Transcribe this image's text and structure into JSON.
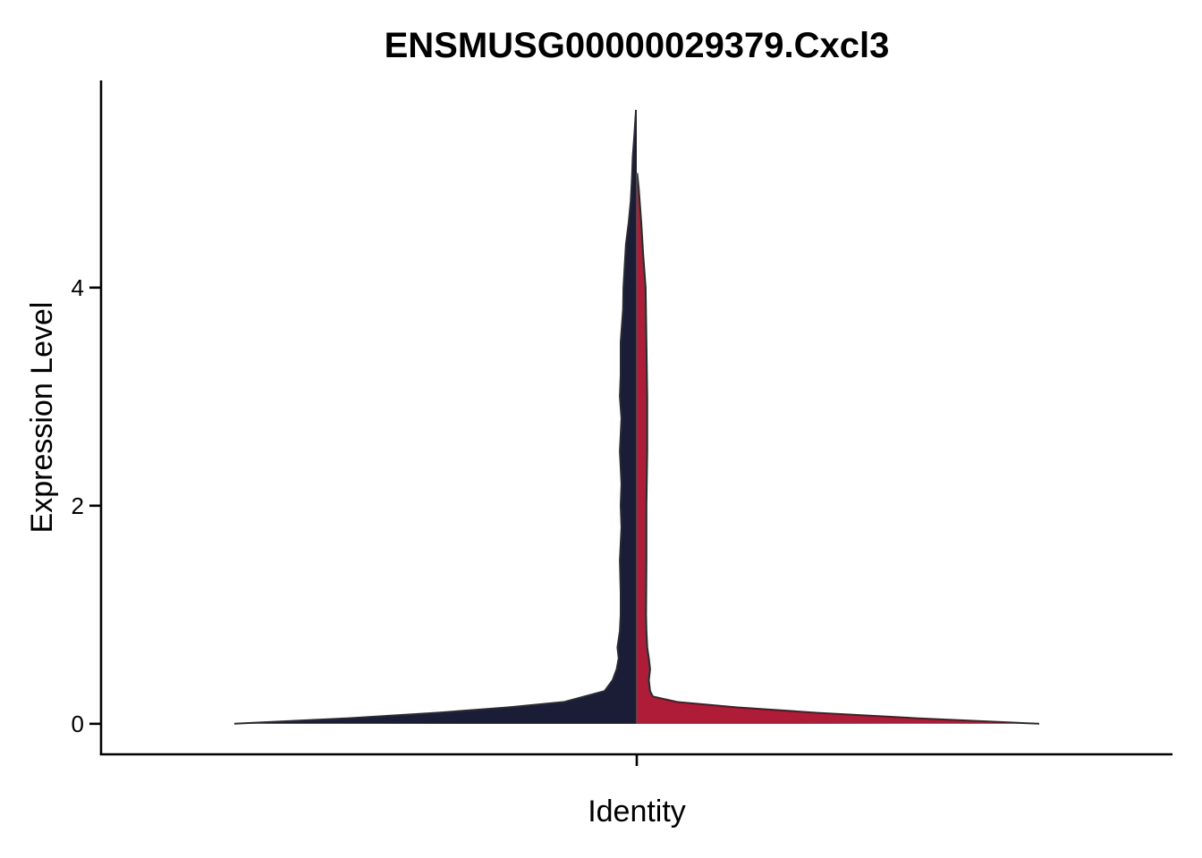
{
  "chart_data": {
    "type": "violin",
    "title": "ENSMUSG00000029379.Cxcl3",
    "xlabel": "Identity",
    "ylabel": "Expression Level",
    "ylim": [
      -0.28,
      5.9
    ],
    "yticks": [
      0,
      2,
      4
    ],
    "grid": false,
    "legend": "none",
    "split": true,
    "max_value": 5.63,
    "series": [
      {
        "color": "#1b1d36",
        "side": "left",
        "profile": [
          [
            0.0,
            1.0
          ],
          [
            0.05,
            0.72
          ],
          [
            0.1,
            0.5
          ],
          [
            0.15,
            0.32
          ],
          [
            0.2,
            0.18
          ],
          [
            0.3,
            0.08
          ],
          [
            0.4,
            0.06
          ],
          [
            0.5,
            0.05
          ],
          [
            0.6,
            0.045
          ],
          [
            0.7,
            0.048
          ],
          [
            0.85,
            0.042
          ],
          [
            1.0,
            0.04
          ],
          [
            1.2,
            0.04
          ],
          [
            1.5,
            0.042
          ],
          [
            1.8,
            0.038
          ],
          [
            2.0,
            0.04
          ],
          [
            2.2,
            0.038
          ],
          [
            2.5,
            0.042
          ],
          [
            2.8,
            0.038
          ],
          [
            3.0,
            0.042
          ],
          [
            3.2,
            0.04
          ],
          [
            3.5,
            0.04
          ],
          [
            3.8,
            0.034
          ],
          [
            4.0,
            0.033
          ],
          [
            4.2,
            0.03
          ],
          [
            4.4,
            0.027
          ],
          [
            4.6,
            0.02
          ],
          [
            4.8,
            0.015
          ],
          [
            5.0,
            0.012
          ],
          [
            5.2,
            0.01
          ],
          [
            5.4,
            0.006
          ],
          [
            5.63,
            0.002
          ]
        ]
      },
      {
        "color": "#ae1c37",
        "side": "right",
        "profile": [
          [
            0.0,
            1.0
          ],
          [
            0.05,
            0.7
          ],
          [
            0.1,
            0.45
          ],
          [
            0.15,
            0.25
          ],
          [
            0.2,
            0.1
          ],
          [
            0.25,
            0.04
          ],
          [
            0.3,
            0.033
          ],
          [
            0.4,
            0.03
          ],
          [
            0.5,
            0.033
          ],
          [
            0.6,
            0.03
          ],
          [
            0.7,
            0.026
          ],
          [
            0.85,
            0.024
          ],
          [
            1.0,
            0.023
          ],
          [
            1.5,
            0.024
          ],
          [
            2.0,
            0.024
          ],
          [
            2.5,
            0.026
          ],
          [
            3.0,
            0.026
          ],
          [
            3.5,
            0.024
          ],
          [
            4.0,
            0.022
          ],
          [
            4.3,
            0.016
          ],
          [
            4.6,
            0.011
          ],
          [
            4.9,
            0.005
          ],
          [
            5.05,
            0.001
          ]
        ]
      }
    ]
  }
}
